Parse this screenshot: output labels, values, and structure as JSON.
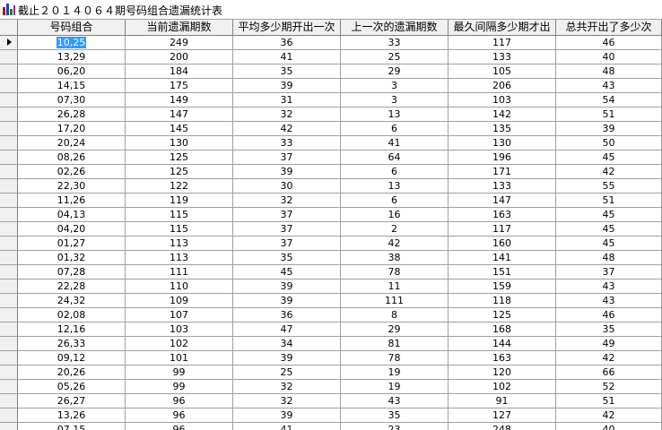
{
  "title": "截止２０１４０６４期号码组合遗漏统计表",
  "table": {
    "headers": [
      "号码组合",
      "当前遗漏期数",
      "平均多少期开出一次",
      "上一次的遗漏期数",
      "最久间隔多少期才出",
      "总共开出了多少次"
    ],
    "rows": [
      [
        "10,25",
        249,
        36,
        33,
        117,
        46
      ],
      [
        "13,29",
        200,
        41,
        25,
        133,
        40
      ],
      [
        "06,20",
        184,
        35,
        29,
        105,
        48
      ],
      [
        "14,15",
        175,
        39,
        3,
        206,
        43
      ],
      [
        "07,30",
        149,
        31,
        3,
        103,
        54
      ],
      [
        "26,28",
        147,
        32,
        13,
        142,
        51
      ],
      [
        "17,20",
        145,
        42,
        6,
        135,
        39
      ],
      [
        "20,24",
        130,
        33,
        41,
        130,
        50
      ],
      [
        "08,26",
        125,
        37,
        64,
        196,
        45
      ],
      [
        "02,26",
        125,
        39,
        6,
        171,
        42
      ],
      [
        "22,30",
        122,
        30,
        13,
        133,
        55
      ],
      [
        "11,26",
        119,
        32,
        6,
        147,
        51
      ],
      [
        "04,13",
        115,
        37,
        16,
        163,
        45
      ],
      [
        "04,20",
        115,
        37,
        2,
        117,
        45
      ],
      [
        "01,27",
        113,
        37,
        42,
        160,
        45
      ],
      [
        "01,32",
        113,
        35,
        38,
        141,
        48
      ],
      [
        "07,28",
        111,
        45,
        78,
        151,
        37
      ],
      [
        "22,28",
        110,
        39,
        11,
        159,
        43
      ],
      [
        "24,32",
        109,
        39,
        111,
        118,
        43
      ],
      [
        "02,08",
        107,
        36,
        8,
        125,
        46
      ],
      [
        "12,16",
        103,
        47,
        29,
        168,
        35
      ],
      [
        "26,33",
        102,
        34,
        81,
        144,
        49
      ],
      [
        "09,12",
        101,
        39,
        78,
        163,
        42
      ],
      [
        "20,26",
        99,
        25,
        19,
        120,
        66
      ],
      [
        "05,26",
        99,
        32,
        19,
        102,
        52
      ],
      [
        "26,27",
        96,
        32,
        43,
        91,
        51
      ],
      [
        "13,26",
        96,
        39,
        35,
        127,
        42
      ],
      [
        "07,15",
        96,
        41,
        23,
        248,
        40
      ]
    ]
  }
}
